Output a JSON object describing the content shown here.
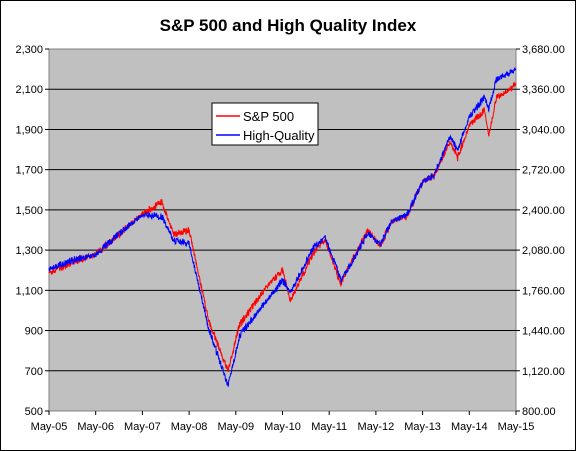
{
  "chart_data": {
    "type": "line",
    "title": "S&P 500 and High Quality Index",
    "x_tick_labels": [
      "May-05",
      "May-06",
      "May-07",
      "May-08",
      "May-09",
      "May-10",
      "May-11",
      "May-12",
      "May-13",
      "May-14",
      "May-15"
    ],
    "y_left": {
      "min": 500,
      "max": 2300,
      "ticks": [
        500,
        700,
        900,
        1100,
        1300,
        1500,
        1700,
        1900,
        2100,
        2300
      ],
      "tick_labels": [
        "500",
        "700",
        "900",
        "1,100",
        "1,300",
        "1,500",
        "1,700",
        "1,900",
        "2,100",
        "2,300"
      ]
    },
    "y_right": {
      "min": 800,
      "max": 3680,
      "ticks": [
        800,
        1120,
        1440,
        1760,
        2080,
        2400,
        2720,
        3040,
        3360,
        3680
      ],
      "tick_labels": [
        "800.00",
        "1,120.00",
        "1,440.00",
        "1,760.00",
        "2,080.00",
        "2,400.00",
        "2,720.00",
        "3,040.00",
        "3,360.00",
        "3,680.00"
      ]
    },
    "grid": "horizontal",
    "legend_position": "inside-top-left",
    "background": "#c0c0c0",
    "series": [
      {
        "name": "S&P 500",
        "axis": "left",
        "color": "#ff0000",
        "x": [
          "May-05",
          "Nov-05",
          "May-06",
          "Nov-06",
          "May-07",
          "Oct-07",
          "Jan-08",
          "May-08",
          "Oct-08",
          "Mar-09",
          "Jun-09",
          "Jan-10",
          "May-10",
          "Jul-10",
          "Jan-11",
          "Apr-11",
          "Aug-11",
          "Oct-11",
          "Mar-12",
          "Jun-12",
          "Sep-12",
          "Jan-13",
          "May-13",
          "Aug-13",
          "Dec-13",
          "Feb-14",
          "May-14",
          "Sep-14",
          "Oct-14",
          "Dec-14",
          "Mar-15",
          "May-15"
        ],
        "values": [
          1180,
          1240,
          1280,
          1380,
          1480,
          1540,
          1380,
          1400,
          950,
          700,
          930,
          1120,
          1200,
          1050,
          1290,
          1350,
          1130,
          1220,
          1400,
          1320,
          1440,
          1470,
          1640,
          1670,
          1840,
          1760,
          1920,
          2000,
          1870,
          2060,
          2090,
          2130
        ]
      },
      {
        "name": "High-Quality",
        "axis": "right",
        "color": "#0000ff",
        "x": [
          "May-05",
          "Nov-05",
          "May-06",
          "Nov-06",
          "May-07",
          "Oct-07",
          "Jan-08",
          "May-08",
          "Oct-08",
          "Mar-09",
          "Jun-09",
          "Jan-10",
          "May-10",
          "Jul-10",
          "Jan-11",
          "Apr-11",
          "Aug-11",
          "Oct-11",
          "Mar-12",
          "Jun-12",
          "Sep-12",
          "Jan-13",
          "May-13",
          "Aug-13",
          "Dec-13",
          "Feb-14",
          "May-14",
          "Sep-14",
          "Oct-14",
          "Dec-14",
          "Mar-15",
          "May-15"
        ],
        "values": [
          1930,
          2000,
          2040,
          2210,
          2360,
          2350,
          2160,
          2130,
          1460,
          1000,
          1400,
          1680,
          1840,
          1740,
          2100,
          2180,
          1840,
          1940,
          2220,
          2120,
          2300,
          2370,
          2620,
          2680,
          2980,
          2880,
          3140,
          3300,
          3200,
          3440,
          3480,
          3520
        ]
      }
    ]
  }
}
